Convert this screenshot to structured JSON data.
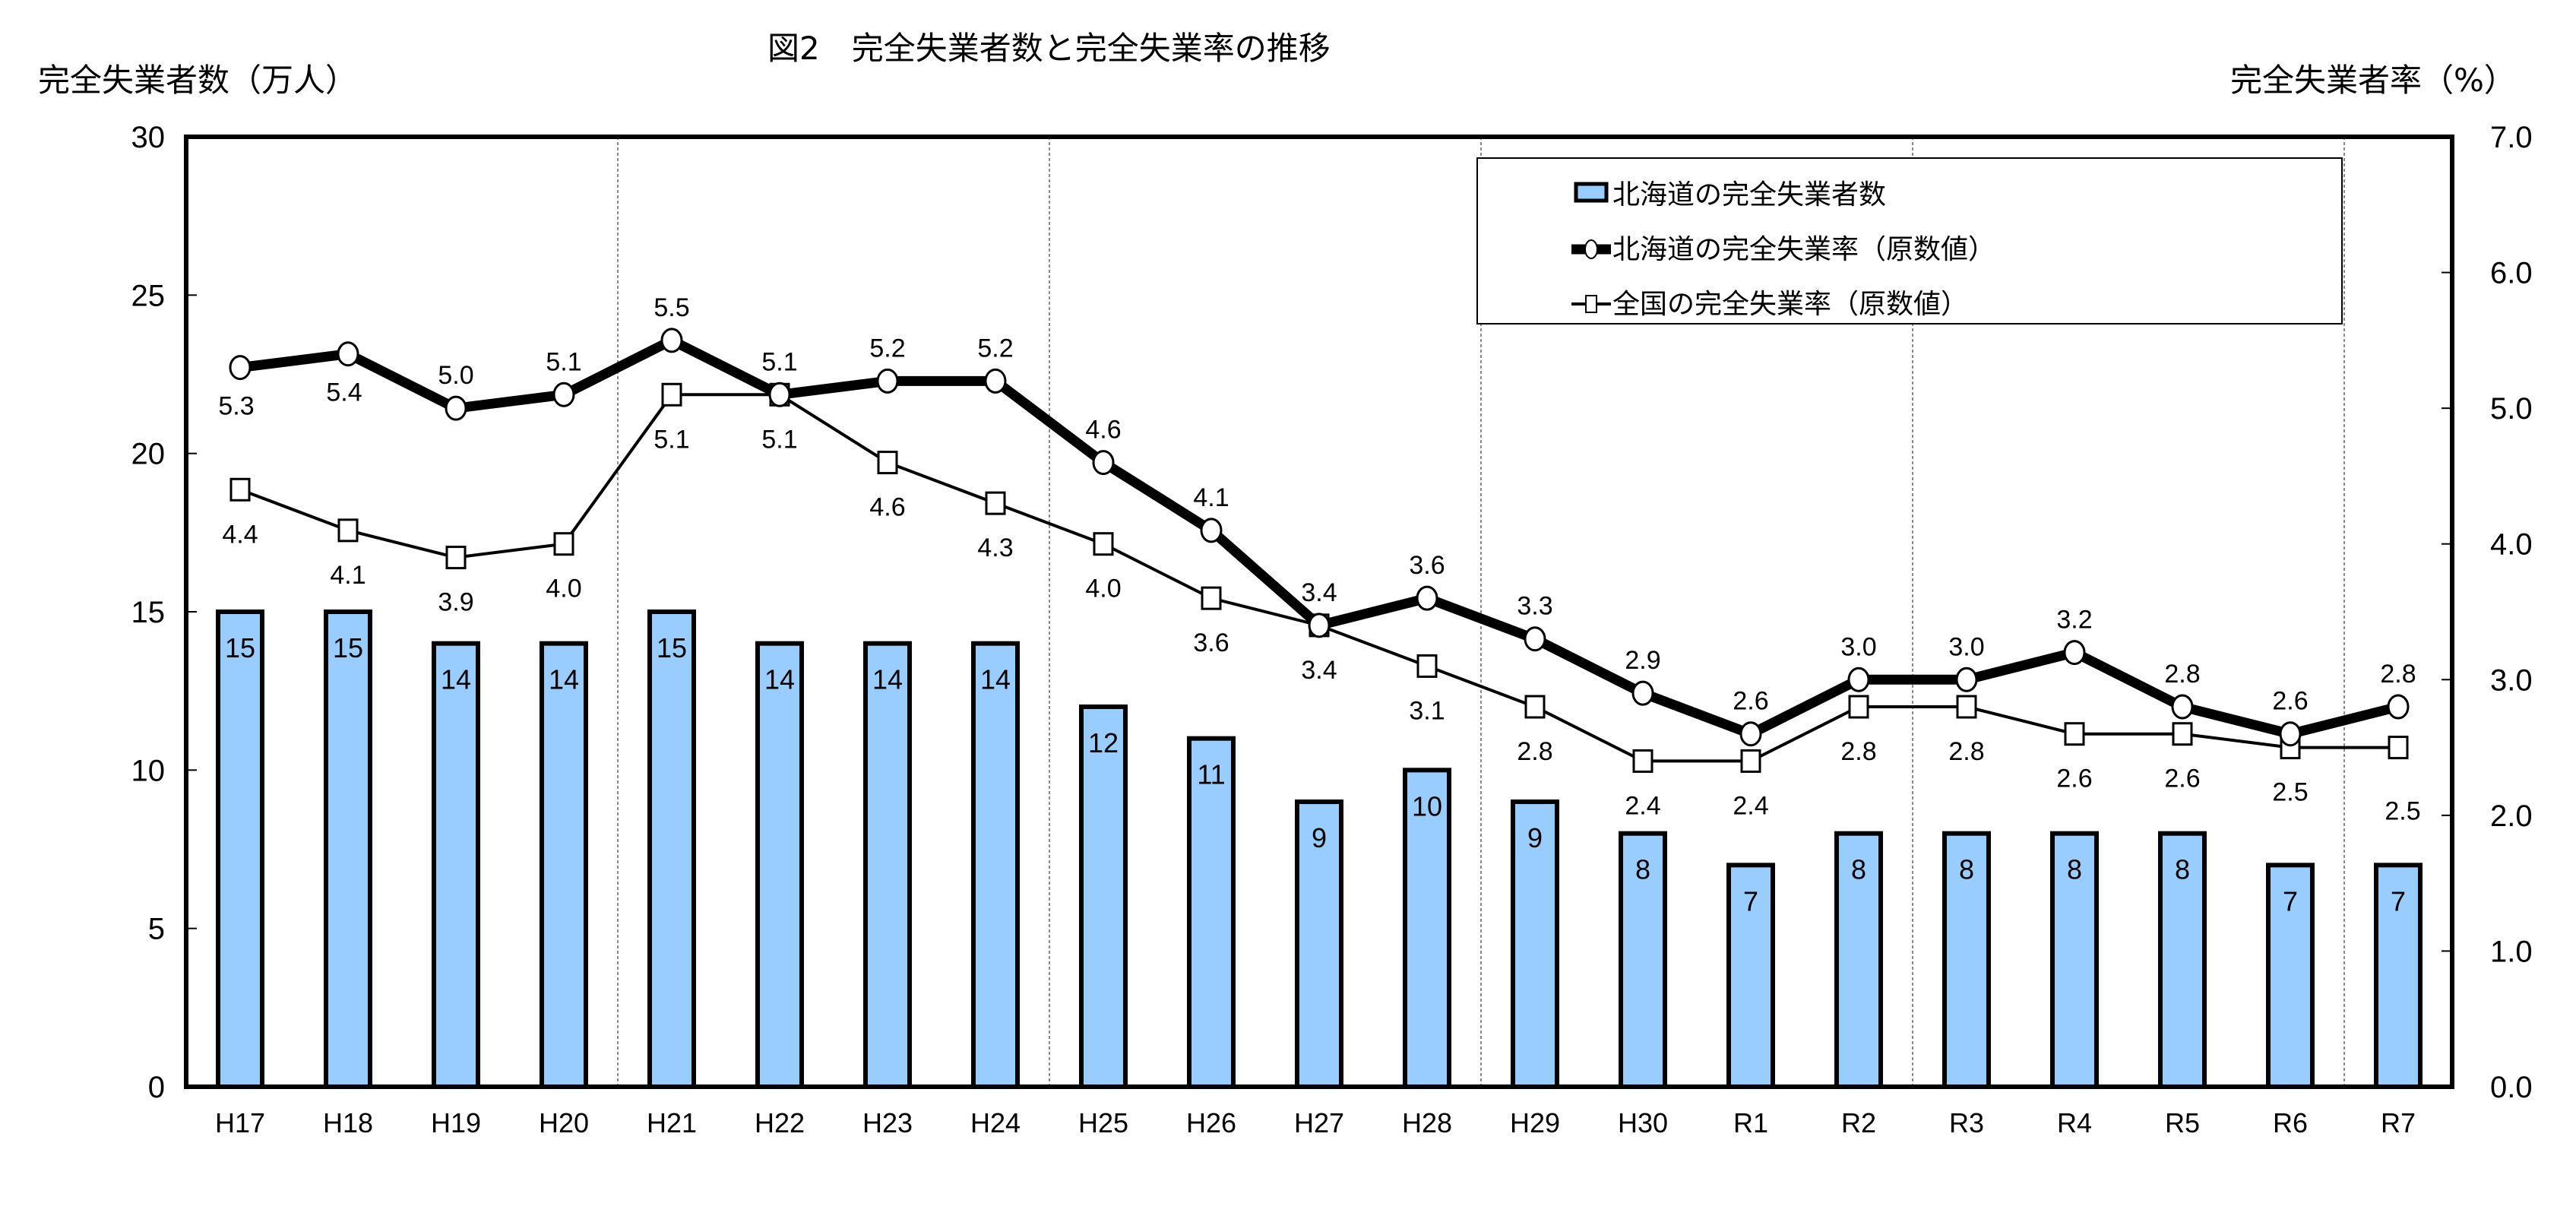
{
  "chart_data": {
    "type": "bar+line",
    "title": "図2　完全失業者数と完全失業率の推移",
    "ylabel_left": "完全失業者数（万人）",
    "ylabel_right": "完全失業者率（%）",
    "xlabel": "",
    "categories": [
      "H17",
      "H18",
      "H19",
      "H20",
      "H21",
      "H22",
      "H23",
      "H24",
      "H25",
      "H26",
      "H27",
      "H28",
      "H29",
      "H30",
      "R1",
      "R2",
      "R3",
      "R4",
      "R5",
      "R6",
      "R7"
    ],
    "ylim_left": [
      0,
      30
    ],
    "yticks_left": [
      "0",
      "5",
      "10",
      "15",
      "20",
      "25",
      "30"
    ],
    "ylim_right": [
      0.0,
      7.0
    ],
    "yticks_right": [
      "0.0",
      "1.0",
      "2.0",
      "3.0",
      "4.0",
      "5.0",
      "6.0",
      "7.0"
    ],
    "grid": "vertical dashed at H21, H25, H29, R3, R7 boundaries",
    "legend_position": "top-right inside plot",
    "series": [
      {
        "name": "北海道の完全失業者数",
        "type": "bar",
        "axis": "left",
        "color": "#99ccff",
        "values": [
          15,
          15,
          14,
          14,
          15,
          14,
          14,
          14,
          12,
          11,
          9,
          10,
          9,
          8,
          7,
          8,
          8,
          8,
          8,
          7,
          7
        ]
      },
      {
        "name": "北海道の完全失業率（原数値）",
        "type": "line",
        "axis": "right",
        "marker": "circle",
        "line_width": "thick",
        "values": [
          5.3,
          5.4,
          5.0,
          5.1,
          5.5,
          5.1,
          5.2,
          5.2,
          4.6,
          4.1,
          3.4,
          3.6,
          3.3,
          2.9,
          2.6,
          3.0,
          3.0,
          3.2,
          2.8,
          2.6,
          2.8
        ]
      },
      {
        "name": "全国の完全失業率（原数値）",
        "type": "line",
        "axis": "right",
        "marker": "square",
        "line_width": "thin",
        "values": [
          4.4,
          4.1,
          3.9,
          4.0,
          5.1,
          5.1,
          4.6,
          4.3,
          4.0,
          3.6,
          3.4,
          3.1,
          2.8,
          2.4,
          2.4,
          2.8,
          2.8,
          2.6,
          2.6,
          2.5,
          2.5
        ]
      }
    ]
  }
}
